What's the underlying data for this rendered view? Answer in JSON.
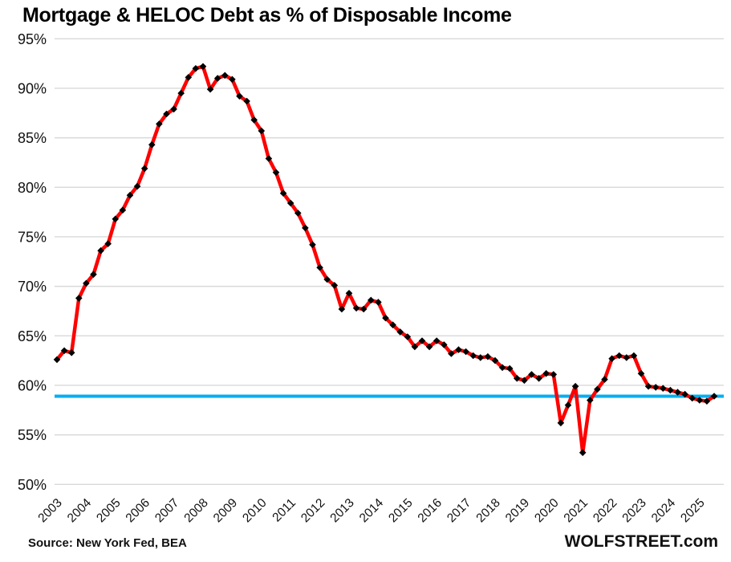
{
  "chart_data": {
    "type": "line",
    "title": "Mortgage & HELOC Debt as % of Disposable Income",
    "frequency": "quarterly",
    "start": "2003Q1",
    "end": "2025Q3",
    "x_tick_labels": [
      "2003",
      "2004",
      "2005",
      "2006",
      "2007",
      "2008",
      "2009",
      "2010",
      "2011",
      "2012",
      "2013",
      "2014",
      "2015",
      "2016",
      "2017",
      "2018",
      "2019",
      "2020",
      "2021",
      "2022",
      "2023",
      "2024",
      "2025"
    ],
    "y_tick_labels": [
      "95%",
      "90%",
      "85%",
      "80%",
      "75%",
      "70%",
      "65%",
      "60%",
      "55%",
      "50%"
    ],
    "ylim": [
      50,
      95
    ],
    "grid": true,
    "grid_color": "#D9D9D9",
    "legend": "none",
    "series": [
      {
        "name": "Mortgage & HELOC debt as % of disposable income",
        "color": "#FF0000",
        "marker": "diamond",
        "marker_color": "#000000",
        "values": [
          62.6,
          63.5,
          63.3,
          68.8,
          70.3,
          71.2,
          73.6,
          74.3,
          76.8,
          77.7,
          79.2,
          80.1,
          81.9,
          84.3,
          86.4,
          87.4,
          87.9,
          89.5,
          91.1,
          92.0,
          92.2,
          89.9,
          91.0,
          91.3,
          90.9,
          89.2,
          88.7,
          86.8,
          85.7,
          82.9,
          81.5,
          79.4,
          78.4,
          77.4,
          75.9,
          74.2,
          71.9,
          70.7,
          70.1,
          67.7,
          69.3,
          67.8,
          67.7,
          68.6,
          68.4,
          66.8,
          66.1,
          65.4,
          64.9,
          63.9,
          64.5,
          63.9,
          64.5,
          64.1,
          63.2,
          63.6,
          63.4,
          63.0,
          62.8,
          62.9,
          62.5,
          61.8,
          61.7,
          60.7,
          60.5,
          61.1,
          60.7,
          61.2,
          61.1,
          56.2,
          58.0,
          59.9,
          53.2,
          58.5,
          59.6,
          60.6,
          62.7,
          63.0,
          62.8,
          63.0,
          61.2,
          59.9,
          59.8,
          59.7,
          59.5,
          59.3,
          59.1,
          58.7,
          58.5,
          58.4,
          58.9
        ]
      }
    ],
    "reference_line": {
      "value": 58.9,
      "color": "#00B0F0"
    }
  },
  "footer": {
    "source": "Source: New York Fed, BEA",
    "branding": "WOLFSTREET.com"
  }
}
